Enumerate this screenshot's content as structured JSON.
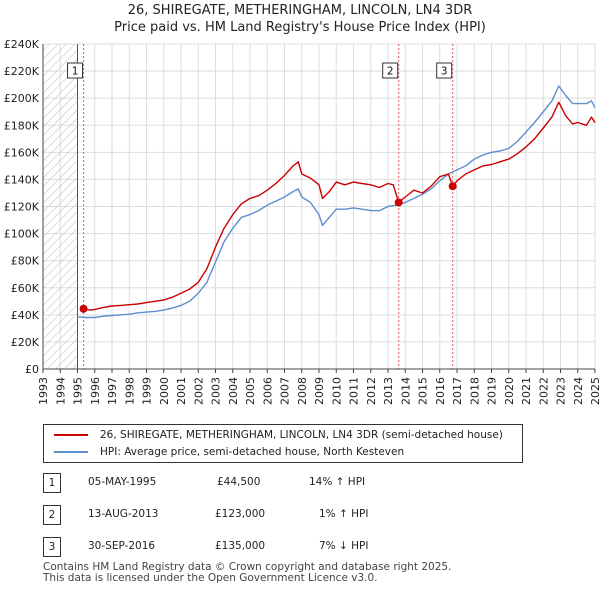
{
  "title_line1": "26, SHIREGATE, METHERINGHAM, LINCOLN, LN4 3DR",
  "title_line2": "Price paid vs. HM Land Registry's House Price Index (HPI)",
  "chart_data": {
    "type": "line",
    "x_range": [
      1993,
      2025
    ],
    "ylim": [
      0,
      240000
    ],
    "x_ticks": [
      "1993",
      "1994",
      "1995",
      "1996",
      "1997",
      "1998",
      "1999",
      "2000",
      "2001",
      "2002",
      "2003",
      "2004",
      "2005",
      "2006",
      "2007",
      "2008",
      "2009",
      "2010",
      "2011",
      "2012",
      "2013",
      "2014",
      "2015",
      "2016",
      "2017",
      "2018",
      "2019",
      "2020",
      "2021",
      "2022",
      "2023",
      "2024",
      "2025"
    ],
    "y_ticks": [
      {
        "v": 0,
        "label": "£0"
      },
      {
        "v": 20000,
        "label": "£20K"
      },
      {
        "v": 40000,
        "label": "£40K"
      },
      {
        "v": 60000,
        "label": "£60K"
      },
      {
        "v": 80000,
        "label": "£80K"
      },
      {
        "v": 100000,
        "label": "£100K"
      },
      {
        "v": 120000,
        "label": "£120K"
      },
      {
        "v": 140000,
        "label": "£140K"
      },
      {
        "v": 160000,
        "label": "£160K"
      },
      {
        "v": 180000,
        "label": "£180K"
      },
      {
        "v": 200000,
        "label": "£200K"
      },
      {
        "v": 220000,
        "label": "£220K"
      },
      {
        "v": 240000,
        "label": "£240K"
      }
    ],
    "hatch_until": 1995.0,
    "series": [
      {
        "name": "26, SHIREGATE, METHERINGHAM, LINCOLN, LN4 3DR (semi-detached house)",
        "color": "#cc0000",
        "points": [
          [
            1995.35,
            44500
          ],
          [
            1995.7,
            43500
          ],
          [
            1996.0,
            44000
          ],
          [
            1996.5,
            45500
          ],
          [
            1997.0,
            46500
          ],
          [
            1997.5,
            47000
          ],
          [
            1998.0,
            47500
          ],
          [
            1998.5,
            48000
          ],
          [
            1999.0,
            49000
          ],
          [
            1999.5,
            50000
          ],
          [
            2000.0,
            51000
          ],
          [
            2000.5,
            53000
          ],
          [
            2001.0,
            56000
          ],
          [
            2001.5,
            59000
          ],
          [
            2002.0,
            64000
          ],
          [
            2002.5,
            74000
          ],
          [
            2003.0,
            90000
          ],
          [
            2003.5,
            104000
          ],
          [
            2004.0,
            114000
          ],
          [
            2004.5,
            122000
          ],
          [
            2005.0,
            126000
          ],
          [
            2005.5,
            128000
          ],
          [
            2006.0,
            132000
          ],
          [
            2006.5,
            137000
          ],
          [
            2007.0,
            143000
          ],
          [
            2007.5,
            150000
          ],
          [
            2007.8,
            153000
          ],
          [
            2008.0,
            144000
          ],
          [
            2008.5,
            141000
          ],
          [
            2009.0,
            136000
          ],
          [
            2009.2,
            126000
          ],
          [
            2009.6,
            131000
          ],
          [
            2010.0,
            138000
          ],
          [
            2010.5,
            136000
          ],
          [
            2011.0,
            138000
          ],
          [
            2011.5,
            137000
          ],
          [
            2012.0,
            136000
          ],
          [
            2012.5,
            134000
          ],
          [
            2013.0,
            137000
          ],
          [
            2013.3,
            136000
          ],
          [
            2013.62,
            123000
          ],
          [
            2014.0,
            127000
          ],
          [
            2014.5,
            132000
          ],
          [
            2015.0,
            130000
          ],
          [
            2015.5,
            135000
          ],
          [
            2016.0,
            142000
          ],
          [
            2016.5,
            144000
          ],
          [
            2016.75,
            135000
          ],
          [
            2017.0,
            139000
          ],
          [
            2017.5,
            144000
          ],
          [
            2018.0,
            147000
          ],
          [
            2018.5,
            150000
          ],
          [
            2019.0,
            151000
          ],
          [
            2019.5,
            153000
          ],
          [
            2020.0,
            155000
          ],
          [
            2020.5,
            159000
          ],
          [
            2021.0,
            164000
          ],
          [
            2021.5,
            170000
          ],
          [
            2022.0,
            178000
          ],
          [
            2022.5,
            186000
          ],
          [
            2022.9,
            197000
          ],
          [
            2023.3,
            187000
          ],
          [
            2023.7,
            181000
          ],
          [
            2024.0,
            182000
          ],
          [
            2024.5,
            180000
          ],
          [
            2024.8,
            186000
          ],
          [
            2025.0,
            182000
          ]
        ]
      },
      {
        "name": "HPI: Average price, semi-detached house, North Kesteven",
        "color": "#5b8fd0",
        "points": [
          [
            1995.0,
            38500
          ],
          [
            1995.5,
            38000
          ],
          [
            1996.0,
            38000
          ],
          [
            1996.5,
            39000
          ],
          [
            1997.0,
            39500
          ],
          [
            1997.5,
            40000
          ],
          [
            1998.0,
            40500
          ],
          [
            1998.5,
            41500
          ],
          [
            1999.0,
            42000
          ],
          [
            1999.5,
            42500
          ],
          [
            2000.0,
            43500
          ],
          [
            2000.5,
            45000
          ],
          [
            2001.0,
            47000
          ],
          [
            2001.5,
            50000
          ],
          [
            2002.0,
            56000
          ],
          [
            2002.5,
            64000
          ],
          [
            2003.0,
            79000
          ],
          [
            2003.5,
            94000
          ],
          [
            2004.0,
            104000
          ],
          [
            2004.5,
            112000
          ],
          [
            2005.0,
            114000
          ],
          [
            2005.5,
            117000
          ],
          [
            2006.0,
            121000
          ],
          [
            2006.5,
            124000
          ],
          [
            2007.0,
            127000
          ],
          [
            2007.5,
            131000
          ],
          [
            2007.8,
            133000
          ],
          [
            2008.0,
            127000
          ],
          [
            2008.5,
            123000
          ],
          [
            2009.0,
            114000
          ],
          [
            2009.2,
            106000
          ],
          [
            2009.6,
            112000
          ],
          [
            2010.0,
            118000
          ],
          [
            2010.5,
            118000
          ],
          [
            2011.0,
            119000
          ],
          [
            2011.5,
            118000
          ],
          [
            2012.0,
            117000
          ],
          [
            2012.5,
            117000
          ],
          [
            2013.0,
            120000
          ],
          [
            2013.5,
            121000
          ],
          [
            2014.0,
            123000
          ],
          [
            2014.5,
            126000
          ],
          [
            2015.0,
            129000
          ],
          [
            2015.5,
            133000
          ],
          [
            2016.0,
            139000
          ],
          [
            2016.5,
            144000
          ],
          [
            2017.0,
            147000
          ],
          [
            2017.5,
            150000
          ],
          [
            2018.0,
            155000
          ],
          [
            2018.5,
            158000
          ],
          [
            2019.0,
            160000
          ],
          [
            2019.5,
            161000
          ],
          [
            2020.0,
            163000
          ],
          [
            2020.5,
            168000
          ],
          [
            2021.0,
            175000
          ],
          [
            2021.5,
            182000
          ],
          [
            2022.0,
            190000
          ],
          [
            2022.5,
            198000
          ],
          [
            2022.9,
            209000
          ],
          [
            2023.3,
            202000
          ],
          [
            2023.7,
            196000
          ],
          [
            2024.0,
            196000
          ],
          [
            2024.5,
            196000
          ],
          [
            2024.8,
            198000
          ],
          [
            2025.0,
            193000
          ]
        ]
      }
    ],
    "sales": [
      {
        "label": "1",
        "x": 1995.35,
        "y": 44500
      },
      {
        "label": "2",
        "x": 2013.62,
        "y": 123000
      },
      {
        "label": "3",
        "x": 2016.75,
        "y": 135000
      }
    ]
  },
  "legend": {
    "property": "26, SHIREGATE, METHERINGHAM, LINCOLN, LN4 3DR (semi-detached house)",
    "hpi": "HPI: Average price, semi-detached house, North Kesteven",
    "property_color": "#cc0000",
    "hpi_color": "#5b8fd0"
  },
  "transactions": [
    {
      "num": "1",
      "date": "05-MAY-1995",
      "price": "£44,500",
      "hpi": "14% ↑ HPI"
    },
    {
      "num": "2",
      "date": "13-AUG-2013",
      "price": "£123,000",
      "hpi": "1% ↑ HPI"
    },
    {
      "num": "3",
      "date": "30-SEP-2016",
      "price": "£135,000",
      "hpi": "7% ↓ HPI"
    }
  ],
  "footer": {
    "line1": "Contains HM Land Registry data © Crown copyright and database right 2025.",
    "line2": "This data is licensed under the Open Government Licence v3.0."
  }
}
